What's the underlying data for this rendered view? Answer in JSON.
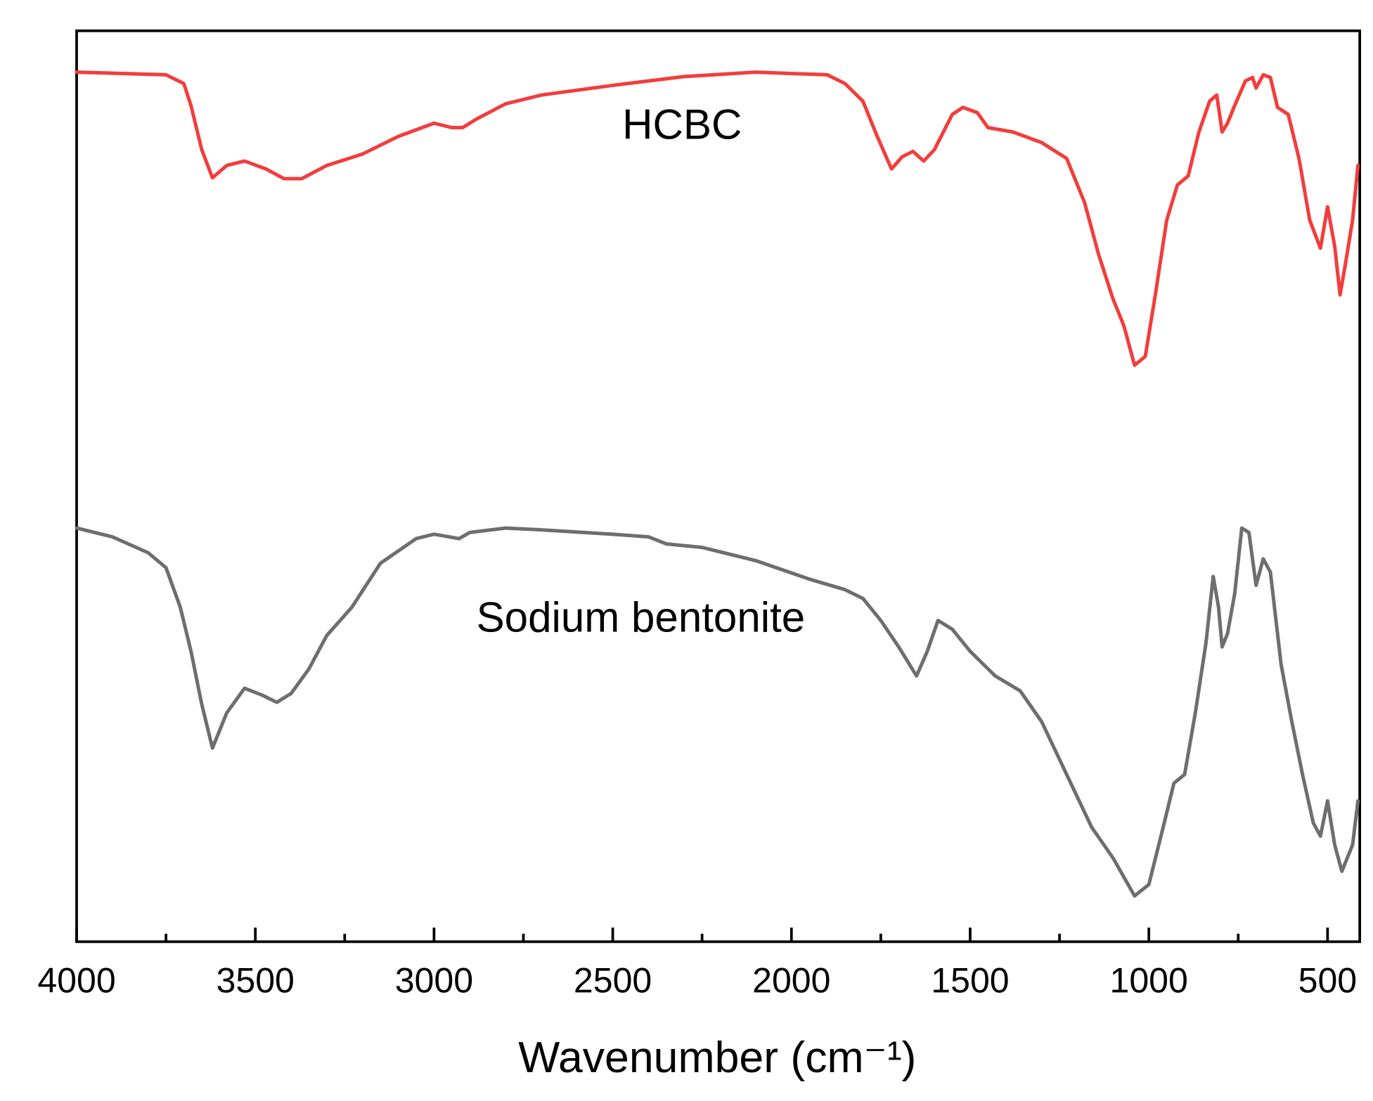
{
  "chart_data": {
    "type": "line",
    "xlabel": "Wavenumber (cm⁻¹)",
    "xlim": [
      4000,
      410
    ],
    "ylim": [
      0,
      1035
    ],
    "xticks": [
      4000,
      3500,
      3000,
      2500,
      2000,
      1500,
      1000,
      500
    ],
    "xminorticks": [
      3750,
      3250,
      2750,
      2250,
      1750,
      1250,
      750
    ],
    "grid": false,
    "series": [
      {
        "name": "HCBC",
        "color": "#f23d3d",
        "x": [
          4000,
          3750,
          3700,
          3680,
          3650,
          3620,
          3580,
          3530,
          3470,
          3420,
          3370,
          3300,
          3200,
          3100,
          3000,
          2950,
          2920,
          2880,
          2800,
          2700,
          2500,
          2300,
          2100,
          1900,
          1850,
          1800,
          1760,
          1720,
          1690,
          1660,
          1630,
          1600,
          1550,
          1520,
          1480,
          1450,
          1380,
          1300,
          1230,
          1180,
          1140,
          1100,
          1070,
          1040,
          1010,
          980,
          950,
          920,
          890,
          860,
          830,
          810,
          795,
          780,
          760,
          730,
          710,
          700,
          680,
          660,
          640,
          610,
          580,
          550,
          520,
          500,
          480,
          465,
          450,
          430,
          415
        ],
        "values": [
          988,
          985,
          975,
          950,
          900,
          868,
          882,
          887,
          878,
          867,
          867,
          882,
          895,
          915,
          930,
          925,
          925,
          935,
          952,
          962,
          973,
          983,
          988,
          985,
          975,
          955,
          915,
          878,
          892,
          898,
          887,
          900,
          940,
          948,
          942,
          925,
          920,
          908,
          890,
          840,
          780,
          730,
          700,
          655,
          665,
          740,
          820,
          860,
          870,
          920,
          955,
          962,
          920,
          930,
          950,
          978,
          982,
          970,
          985,
          982,
          948,
          940,
          890,
          820,
          788,
          835,
          790,
          735,
          770,
          820,
          882
        ]
      },
      {
        "name": "Sodium bentonite",
        "color": "#6e6e6e",
        "x": [
          4000,
          3900,
          3800,
          3750,
          3710,
          3680,
          3650,
          3620,
          3580,
          3530,
          3480,
          3440,
          3400,
          3350,
          3300,
          3230,
          3150,
          3050,
          3000,
          2930,
          2900,
          2800,
          2700,
          2500,
          2400,
          2350,
          2250,
          2100,
          1950,
          1850,
          1800,
          1750,
          1700,
          1650,
          1620,
          1590,
          1550,
          1500,
          1430,
          1360,
          1300,
          1230,
          1160,
          1100,
          1040,
          1000,
          960,
          930,
          900,
          870,
          840,
          820,
          805,
          795,
          780,
          760,
          740,
          720,
          700,
          680,
          660,
          630,
          600,
          570,
          540,
          520,
          500,
          480,
          460,
          430,
          415
        ],
        "values": [
          470,
          460,
          442,
          425,
          380,
          330,
          270,
          220,
          260,
          288,
          280,
          272,
          282,
          310,
          348,
          380,
          430,
          458,
          463,
          458,
          465,
          470,
          468,
          463,
          460,
          452,
          448,
          433,
          412,
          400,
          390,
          365,
          335,
          302,
          330,
          365,
          355,
          330,
          302,
          285,
          250,
          190,
          130,
          95,
          52,
          65,
          130,
          180,
          190,
          260,
          340,
          415,
          380,
          335,
          350,
          395,
          470,
          465,
          405,
          435,
          420,
          315,
          250,
          190,
          135,
          120,
          160,
          110,
          80,
          110,
          160
        ]
      }
    ]
  }
}
